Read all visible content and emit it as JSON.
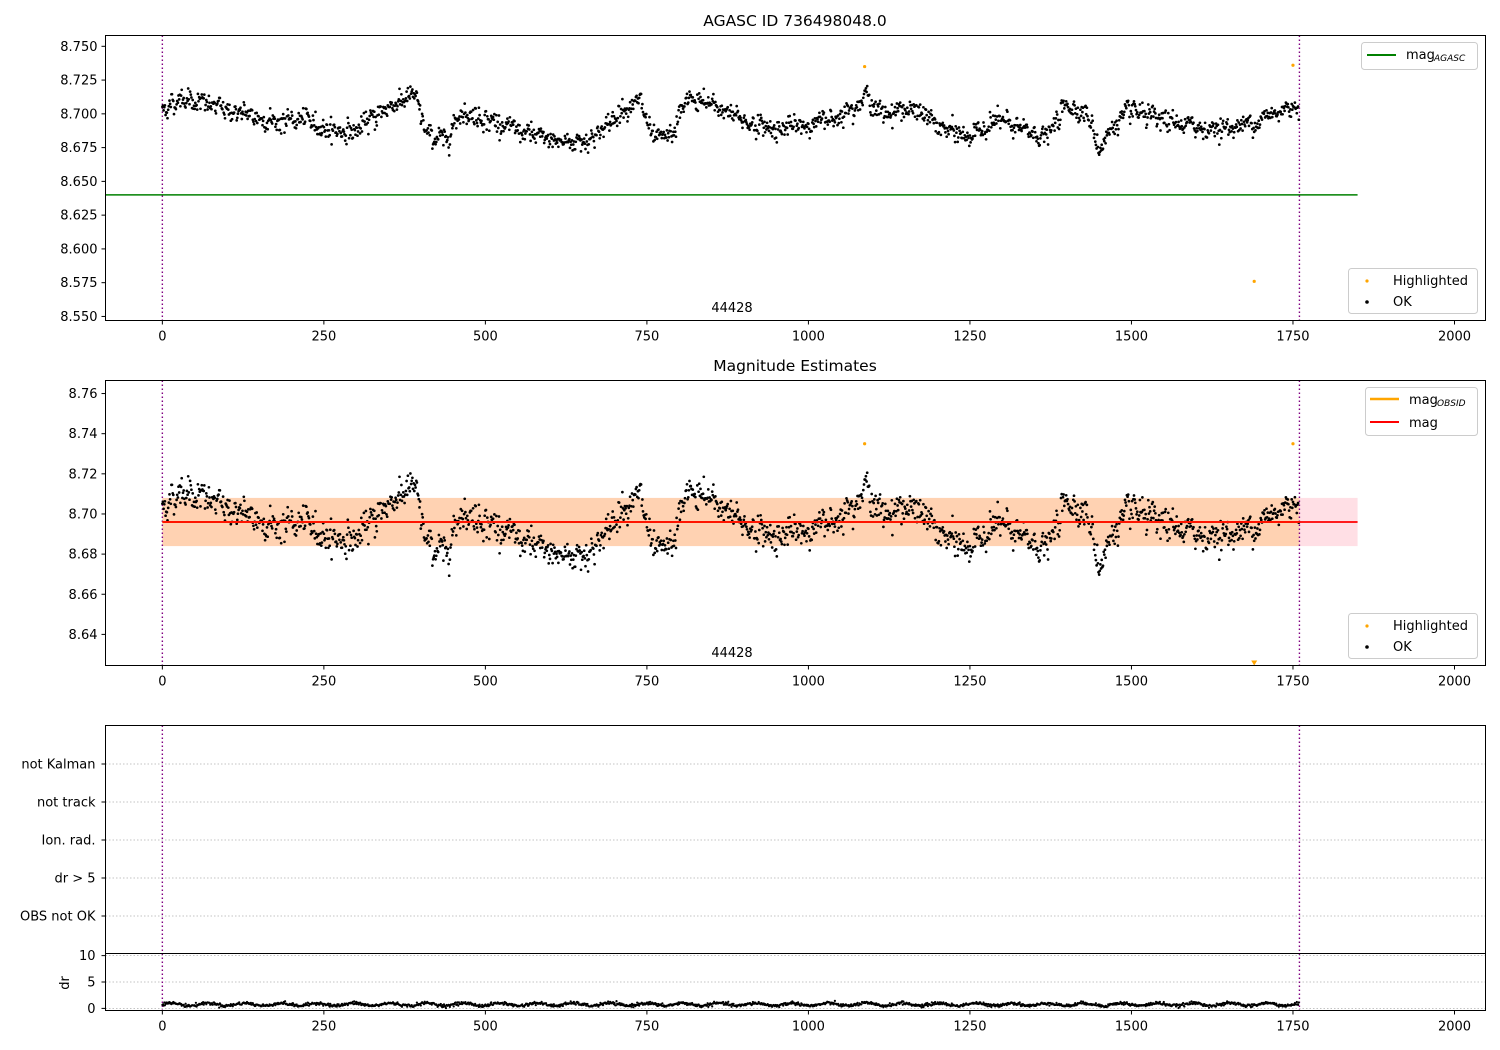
{
  "chart_data": [
    {
      "type": "scatter",
      "title": "AGASC ID 736498048.0",
      "xlim": [
        -88,
        2048
      ],
      "ylim": [
        8.547,
        8.758
      ],
      "xticks": [
        0,
        250,
        500,
        750,
        1000,
        1250,
        1500,
        1750,
        2000
      ],
      "yticks": [
        8.55,
        8.575,
        8.6,
        8.625,
        8.65,
        8.675,
        8.7,
        8.725,
        8.75
      ],
      "ytick_labels": [
        "8.550",
        "8.575",
        "8.600",
        "8.625",
        "8.650",
        "8.675",
        "8.700",
        "8.725",
        "8.750"
      ],
      "series_model": {
        "n": 1760,
        "mean": 8.696,
        "anchors": [
          [
            0,
            8.703
          ],
          [
            30,
            8.712
          ],
          [
            60,
            8.708
          ],
          [
            100,
            8.703
          ],
          [
            140,
            8.698
          ],
          [
            180,
            8.694
          ],
          [
            220,
            8.696
          ],
          [
            260,
            8.688
          ],
          [
            300,
            8.687
          ],
          [
            330,
            8.699
          ],
          [
            360,
            8.708
          ],
          [
            390,
            8.714
          ],
          [
            410,
            8.684
          ],
          [
            440,
            8.681
          ],
          [
            460,
            8.701
          ],
          [
            500,
            8.697
          ],
          [
            540,
            8.689
          ],
          [
            580,
            8.683
          ],
          [
            620,
            8.679
          ],
          [
            660,
            8.681
          ],
          [
            690,
            8.691
          ],
          [
            710,
            8.704
          ],
          [
            740,
            8.709
          ],
          [
            760,
            8.68
          ],
          [
            790,
            8.684
          ],
          [
            810,
            8.711
          ],
          [
            850,
            8.707
          ],
          [
            880,
            8.7
          ],
          [
            920,
            8.691
          ],
          [
            960,
            8.689
          ],
          [
            1000,
            8.692
          ],
          [
            1040,
            8.697
          ],
          [
            1070,
            8.706
          ],
          [
            1090,
            8.714
          ],
          [
            1110,
            8.7
          ],
          [
            1150,
            8.704
          ],
          [
            1180,
            8.699
          ],
          [
            1210,
            8.688
          ],
          [
            1250,
            8.683
          ],
          [
            1290,
            8.696
          ],
          [
            1330,
            8.688
          ],
          [
            1370,
            8.683
          ],
          [
            1400,
            8.707
          ],
          [
            1430,
            8.701
          ],
          [
            1450,
            8.674
          ],
          [
            1470,
            8.69
          ],
          [
            1500,
            8.702
          ],
          [
            1540,
            8.695
          ],
          [
            1580,
            8.692
          ],
          [
            1620,
            8.689
          ],
          [
            1660,
            8.69
          ],
          [
            1700,
            8.696
          ],
          [
            1740,
            8.704
          ],
          [
            1760,
            8.707
          ]
        ],
        "noise": 0.0065
      },
      "highlighted": [
        [
          1087,
          8.735
        ],
        [
          1690,
          8.576
        ],
        [
          1750,
          8.736
        ]
      ],
      "hlines": [
        {
          "name": "mag_AGASC",
          "y": 8.64,
          "x0": -88,
          "x1": 1850,
          "color": "#008000"
        }
      ],
      "vlines": [
        0,
        1760
      ],
      "annotation": "44428",
      "legend_top": {
        "label": "mag",
        "sub": "AGASC",
        "position": "upper right"
      },
      "legend_bottom": {
        "position": "lower right",
        "items": [
          {
            "label": "Highlighted",
            "color": "#ffa500"
          },
          {
            "label": "OK",
            "color": "#000000"
          }
        ]
      }
    },
    {
      "type": "scatter",
      "title": "Magnitude Estimates",
      "xlim": [
        -88,
        2048
      ],
      "ylim": [
        8.6245,
        8.7665
      ],
      "xticks": [
        0,
        250,
        500,
        750,
        1000,
        1250,
        1500,
        1750,
        2000
      ],
      "yticks": [
        8.64,
        8.66,
        8.68,
        8.7,
        8.72,
        8.74,
        8.76
      ],
      "ytick_labels": [
        "8.64",
        "8.66",
        "8.68",
        "8.70",
        "8.72",
        "8.74",
        "8.76"
      ],
      "highlighted": [
        [
          1087,
          8.735
        ],
        [
          1750,
          8.735
        ]
      ],
      "offscale_marker": {
        "x": 1690,
        "note": "below axis"
      },
      "mag": 8.696,
      "band_obsid": [
        8.684,
        8.708
      ],
      "band_mag": [
        8.684,
        8.708
      ],
      "vlines": [
        0,
        1760
      ],
      "annotation": "44428",
      "legend_top": {
        "position": "upper right",
        "items": [
          {
            "label": "mag",
            "sub": "OBSID",
            "color": "#ffa500"
          },
          {
            "label": "mag",
            "sub": "",
            "color": "#ff0000"
          }
        ]
      },
      "legend_bottom": {
        "position": "lower right",
        "items": [
          {
            "label": "Highlighted",
            "color": "#ffa500"
          },
          {
            "label": "OK",
            "color": "#000000"
          }
        ]
      }
    },
    {
      "type": "scatter",
      "xlim": [
        -88,
        2048
      ],
      "categories": [
        "not Kalman",
        "not track",
        "Ion. rad.",
        "dr > 5",
        "OBS not OK"
      ],
      "grid": true,
      "vlines": [
        0,
        1760
      ]
    },
    {
      "type": "scatter",
      "xlim": [
        -88,
        2048
      ],
      "ylim": [
        -0.4,
        10.4
      ],
      "ylabel": "dr",
      "yticks": [
        0,
        5,
        10
      ],
      "grid": true,
      "dr_model": {
        "n": 1760,
        "base": 0.5,
        "amp": 0.5
      },
      "xticks": [
        0,
        250,
        500,
        750,
        1000,
        1250,
        1500,
        1750,
        2000
      ],
      "vlines": [
        0,
        1760
      ]
    }
  ]
}
